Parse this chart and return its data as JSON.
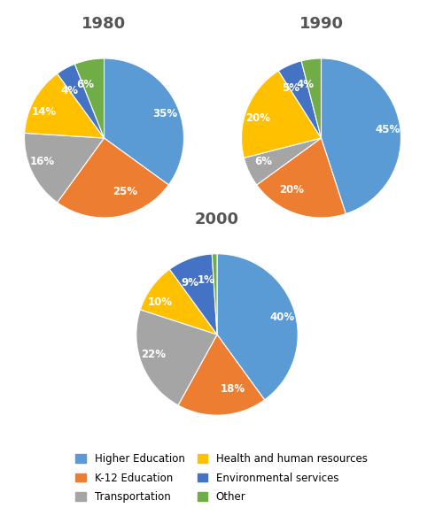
{
  "charts": [
    {
      "title": "1980",
      "values": [
        35,
        25,
        16,
        14,
        4,
        6
      ],
      "labels": [
        "35%",
        "25%",
        "16%",
        "14%",
        "4%",
        "6%"
      ],
      "colors": [
        "#5B9BD5",
        "#ED7D31",
        "#A5A5A5",
        "#FFC000",
        "#4472C4",
        "#70AD47"
      ],
      "startangle": 90
    },
    {
      "title": "1990",
      "values": [
        45,
        20,
        6,
        20,
        5,
        4
      ],
      "labels": [
        "45%",
        "20%",
        "6%",
        "20%",
        "5%",
        "4%"
      ],
      "colors": [
        "#5B9BD5",
        "#ED7D31",
        "#A5A5A5",
        "#FFC000",
        "#4472C4",
        "#70AD47"
      ],
      "startangle": 90
    },
    {
      "title": "2000",
      "values": [
        40,
        18,
        22,
        10,
        9,
        1
      ],
      "labels": [
        "40%",
        "18%",
        "22%",
        "10%",
        "9%",
        "1%"
      ],
      "colors": [
        "#5B9BD5",
        "#ED7D31",
        "#A5A5A5",
        "#FFC000",
        "#4472C4",
        "#70AD47"
      ],
      "startangle": 90
    }
  ],
  "legend_labels": [
    "Higher Education",
    "K-12 Education",
    "Transportation",
    "Health and human resources",
    "Environmental services",
    "Other"
  ],
  "legend_colors": [
    "#5B9BD5",
    "#ED7D31",
    "#A5A5A5",
    "#FFC000",
    "#4472C4",
    "#70AD47"
  ],
  "title_fontsize": 13,
  "label_fontsize": 8.5,
  "background_color": "#FFFFFF"
}
